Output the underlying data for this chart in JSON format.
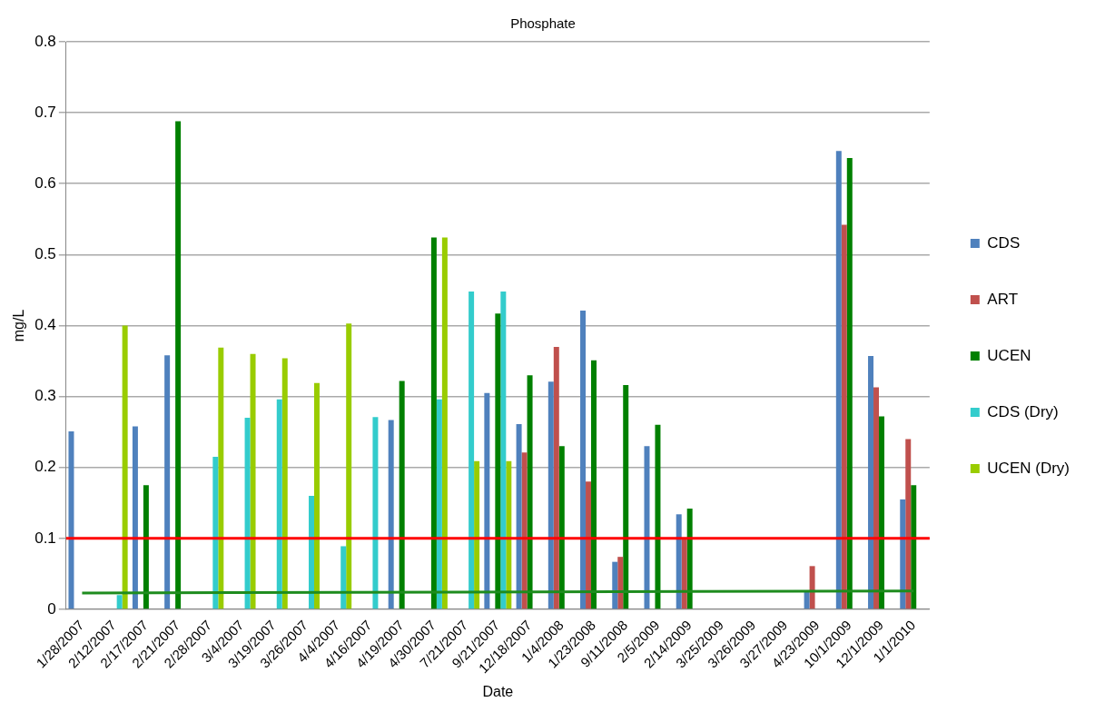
{
  "chart_data": {
    "type": "bar",
    "title": "Phosphate",
    "xlabel": "Date",
    "ylabel": "mg/L",
    "categories": [
      "1/28/2007",
      "2/12/2007",
      "2/17/2007",
      "2/21/2007",
      "2/28/2007",
      "3/4/2007",
      "3/19/2007",
      "3/26/2007",
      "4/4/2007",
      "4/16/2007",
      "4/19/2007",
      "4/30/2007",
      "7/21/2007",
      "9/21/2007",
      "12/18/2007",
      "1/4/2008",
      "1/23/2008",
      "9/11/2008",
      "2/5/2009",
      "2/14/2009",
      "3/25/2009",
      "3/26/2009",
      "3/27/2009",
      "4/23/2009",
      "10/1/2009",
      "12/1/2009",
      "1/1/2010"
    ],
    "series": [
      {
        "name": "CDS",
        "color": "#4f81bd",
        "values": [
          0.251,
          null,
          0.258,
          0.358,
          null,
          null,
          null,
          null,
          null,
          null,
          0.267,
          null,
          null,
          0.305,
          0.261,
          0.321,
          0.421,
          0.067,
          0.23,
          0.134,
          null,
          null,
          null,
          0.025,
          0.646,
          0.357,
          0.155
        ]
      },
      {
        "name": "ART",
        "color": "#c0504d",
        "values": [
          null,
          null,
          null,
          null,
          null,
          null,
          null,
          null,
          null,
          null,
          null,
          null,
          null,
          null,
          0.221,
          0.37,
          0.18,
          0.074,
          null,
          0.1,
          null,
          null,
          null,
          0.061,
          0.542,
          0.313,
          0.24
        ]
      },
      {
        "name": "UCEN",
        "color": "#008000",
        "values": [
          null,
          null,
          0.175,
          0.688,
          null,
          null,
          null,
          null,
          null,
          null,
          0.322,
          0.524,
          null,
          0.417,
          0.33,
          0.23,
          0.351,
          0.316,
          0.26,
          0.142,
          null,
          null,
          null,
          null,
          0.636,
          0.272,
          0.175
        ]
      },
      {
        "name": "CDS (Dry)",
        "color": "#33cccc",
        "values": [
          null,
          0.02,
          null,
          null,
          0.215,
          0.27,
          0.296,
          0.16,
          0.089,
          0.271,
          null,
          0.296,
          0.448,
          0.448,
          null,
          null,
          null,
          null,
          null,
          null,
          null,
          null,
          null,
          null,
          null,
          null,
          null
        ]
      },
      {
        "name": "UCEN (Dry)",
        "color": "#99cc00",
        "values": [
          null,
          0.4,
          null,
          null,
          0.369,
          0.36,
          0.354,
          0.319,
          0.403,
          null,
          null,
          0.524,
          0.209,
          0.209,
          null,
          null,
          null,
          null,
          null,
          null,
          null,
          null,
          null,
          null,
          null,
          null,
          null
        ]
      },
      {
        "type": "line",
        "color": "#1e8c1e",
        "values": [
          0.023,
          null,
          null,
          null,
          null,
          null,
          null,
          null,
          null,
          null,
          null,
          null,
          null,
          null,
          null,
          null,
          null,
          null,
          null,
          null,
          null,
          null,
          null,
          null,
          null,
          null,
          0.026
        ]
      }
    ],
    "ylim": [
      0,
      0.8
    ],
    "yticks": [
      0,
      0.1,
      0.2,
      0.3,
      0.4,
      0.5,
      0.6,
      0.7,
      0.8
    ],
    "grid": "y",
    "legend": "right",
    "ref_lines": [
      {
        "axis": "y",
        "value": 0.1,
        "color": "#ff0000"
      }
    ]
  }
}
